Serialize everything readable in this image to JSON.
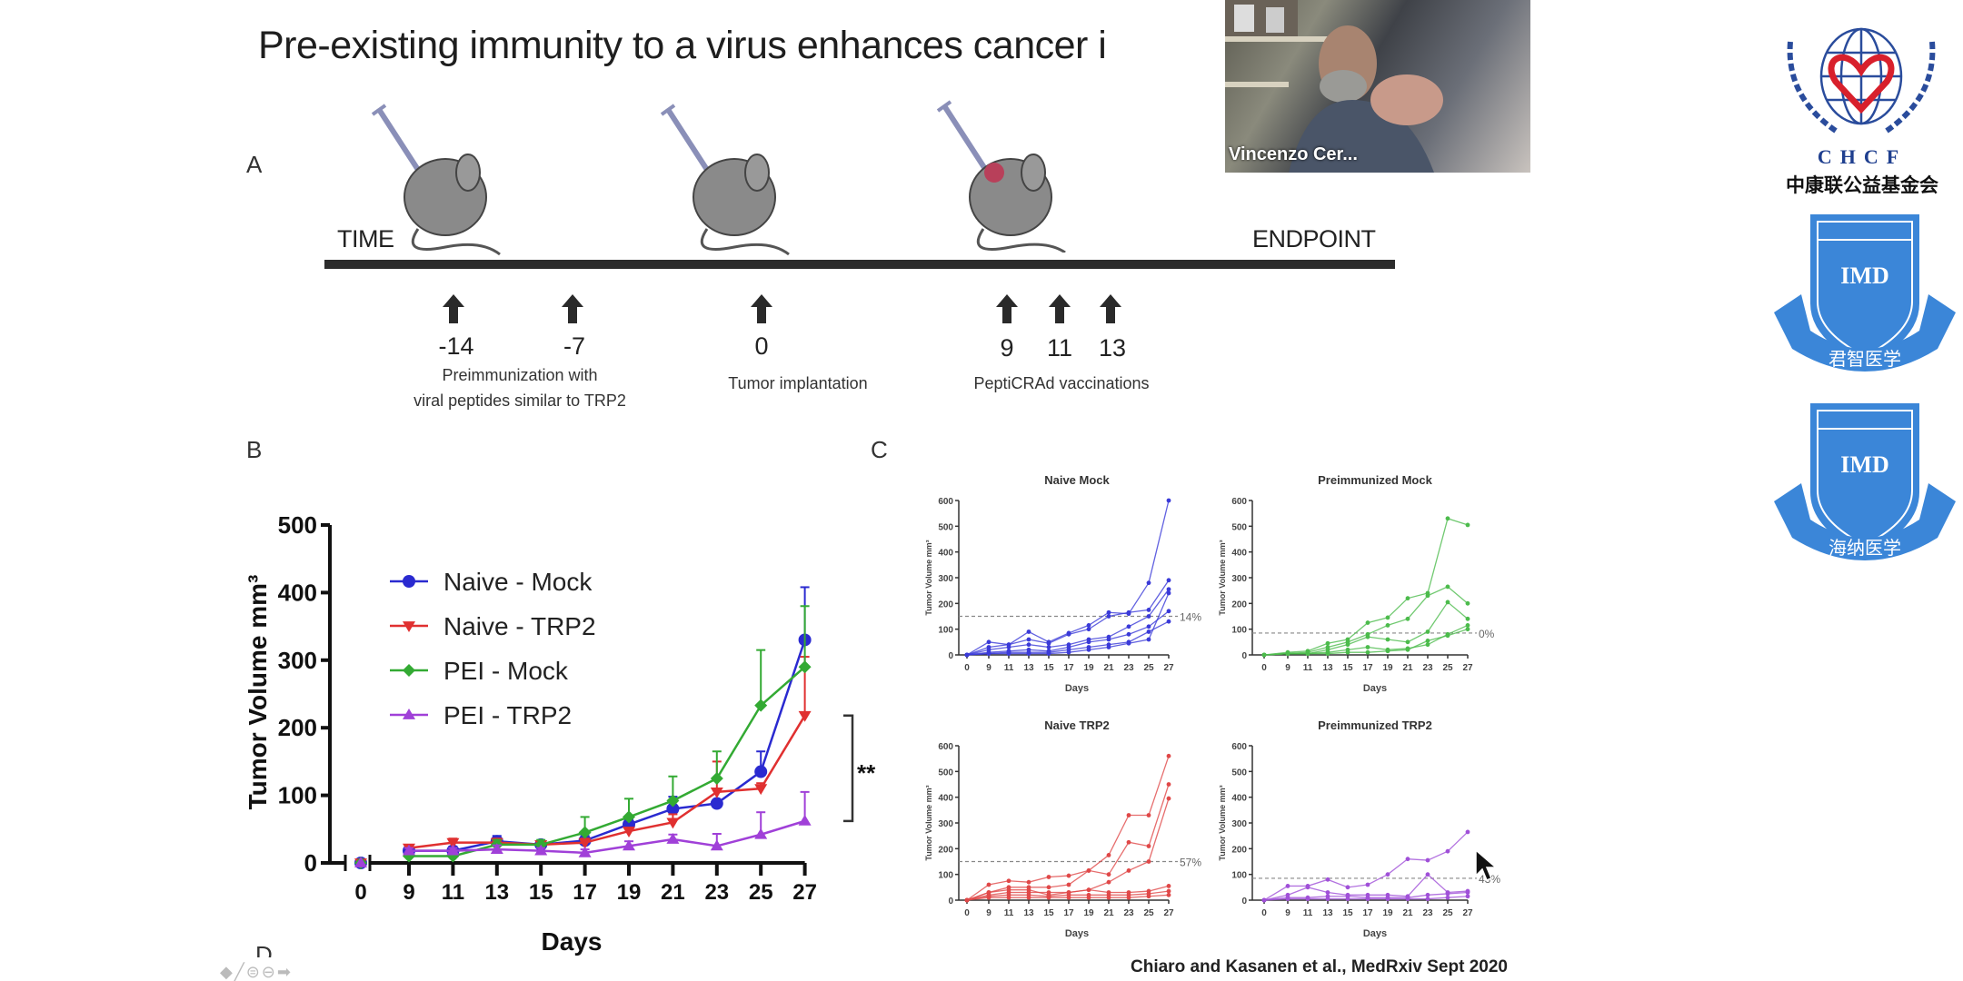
{
  "slide": {
    "title": "Pre-existing immunity to a virus enhances cancer i",
    "panel_labels": {
      "a": "A",
      "b": "B",
      "c": "C",
      "d": "D"
    },
    "citation": "Chiaro and Kasanen et al., MedRxiv Sept 2020"
  },
  "timeline": {
    "start_label": "TIME",
    "end_label": "ENDPOINT",
    "events": [
      {
        "day": "-14"
      },
      {
        "day": "-7"
      },
      {
        "day": "0"
      },
      {
        "day": "9"
      },
      {
        "day": "11"
      },
      {
        "day": "13"
      }
    ],
    "captions": {
      "preimmunization_line1": "Preimmunization with",
      "preimmunization_line2": "viral peptides similar to TRP2",
      "implantation": "Tumor implantation",
      "vaccinations": "PeptiCRAd vaccinations"
    }
  },
  "webcam": {
    "participant_name": "Vincenzo Cer..."
  },
  "logos": {
    "chcf_letters": "CHCF",
    "chcf_chinese": "中康联公益基金会",
    "imd1_text": "IMD",
    "imd1_chinese": "君智医学",
    "imd2_text": "IMD",
    "imd2_chinese": "海纳医学"
  },
  "nav_controls": {
    "icons": [
      "arrow-left-icon",
      "pen-icon",
      "menu-icon",
      "zoom-out-icon",
      "arrow-right-icon"
    ]
  },
  "chart_data": [
    {
      "type": "line",
      "id": "B",
      "xlabel": "Days",
      "ylabel": "Tumor Volume mm³",
      "x": [
        0,
        9,
        11,
        13,
        15,
        17,
        19,
        21,
        23,
        25,
        27
      ],
      "xticks": [
        "0",
        "9",
        "11",
        "13",
        "15",
        "17",
        "19",
        "21",
        "23",
        "25",
        "27"
      ],
      "ylim": [
        0,
        500
      ],
      "yticks": [
        "0",
        "100",
        "200",
        "300",
        "400",
        "500"
      ],
      "legend_position": "top-left",
      "significance": "**",
      "series": [
        {
          "name": "Naive - Mock",
          "color": "#2a2ad0",
          "marker": "circle",
          "values": [
            0,
            18,
            18,
            32,
            27,
            33,
            57,
            80,
            88,
            135,
            330
          ],
          "err_upper": [
            0,
            22,
            24,
            40,
            32,
            40,
            65,
            98,
            92,
            165,
            408
          ]
        },
        {
          "name": "Naive - TRP2",
          "color": "#e03030",
          "marker": "triangle-down",
          "values": [
            0,
            22,
            30,
            30,
            27,
            30,
            47,
            60,
            105,
            110,
            218
          ],
          "err_upper": [
            0,
            25,
            36,
            36,
            32,
            36,
            52,
            72,
            150,
            118,
            305
          ]
        },
        {
          "name": "PEI - Mock",
          "color": "#33aa33",
          "marker": "diamond",
          "values": [
            0,
            10,
            10,
            27,
            27,
            45,
            68,
            92,
            125,
            233,
            290
          ],
          "err_upper": [
            0,
            14,
            14,
            34,
            34,
            68,
            95,
            128,
            165,
            315,
            380
          ]
        },
        {
          "name": "PEI - TRP2",
          "color": "#a040d8",
          "marker": "triangle-up",
          "values": [
            0,
            18,
            18,
            20,
            18,
            15,
            25,
            35,
            25,
            42,
            62
          ],
          "err_upper": [
            0,
            22,
            22,
            26,
            22,
            20,
            32,
            42,
            43,
            75,
            105
          ]
        }
      ]
    },
    {
      "type": "line",
      "id": "C1",
      "title": "Naive Mock",
      "color": "#3a3ad8",
      "xlabel": "Days",
      "ylabel": "Tumor Volume mm³",
      "ylim": [
        0,
        600
      ],
      "x": [
        0,
        9,
        11,
        13,
        15,
        17,
        19,
        21,
        23,
        25,
        27
      ],
      "xticks": [
        "0",
        "9",
        "11",
        "13",
        "15",
        "17",
        "19",
        "21",
        "23",
        "25",
        "27"
      ],
      "yticks": [
        "0",
        "100",
        "200",
        "300",
        "400",
        "500",
        "600"
      ],
      "threshold": 150,
      "threshold_label": "14%",
      "series": [
        [
          0,
          50,
          40,
          90,
          50,
          85,
          115,
          165,
          160,
          280,
          600
        ],
        [
          0,
          30,
          40,
          60,
          45,
          80,
          100,
          150,
          165,
          175,
          290
        ],
        [
          0,
          20,
          30,
          40,
          30,
          40,
          60,
          70,
          110,
          150,
          255
        ],
        [
          0,
          10,
          15,
          20,
          15,
          30,
          50,
          60,
          80,
          110,
          170
        ],
        [
          0,
          5,
          10,
          10,
          10,
          20,
          30,
          40,
          50,
          90,
          130
        ],
        [
          0,
          5,
          5,
          5,
          5,
          10,
          20,
          30,
          45,
          60,
          240
        ]
      ]
    },
    {
      "type": "line",
      "id": "C2",
      "title": "Preimmunized Mock",
      "color": "#4cbb4c",
      "xlabel": "Days",
      "ylabel": "Tumor Volume mm³",
      "ylim": [
        0,
        600
      ],
      "x": [
        0,
        9,
        11,
        13,
        15,
        17,
        19,
        21,
        23,
        25,
        27
      ],
      "xticks": [
        "0",
        "9",
        "11",
        "13",
        "15",
        "17",
        "19",
        "21",
        "23",
        "25",
        "27"
      ],
      "yticks": [
        "0",
        "100",
        "200",
        "300",
        "400",
        "500",
        "600"
      ],
      "threshold": 85,
      "threshold_label": "0%",
      "series": [
        [
          0,
          10,
          15,
          45,
          60,
          125,
          145,
          220,
          240,
          530,
          505
        ],
        [
          0,
          5,
          10,
          30,
          50,
          80,
          115,
          140,
          230,
          265,
          200
        ],
        [
          0,
          5,
          5,
          20,
          40,
          70,
          60,
          50,
          90,
          205,
          140
        ],
        [
          0,
          5,
          5,
          10,
          20,
          30,
          20,
          25,
          40,
          80,
          115
        ],
        [
          0,
          5,
          5,
          5,
          10,
          10,
          15,
          20,
          55,
          75,
          100
        ]
      ]
    },
    {
      "type": "line",
      "id": "C3",
      "title": "Naive TRP2",
      "color": "#e04848",
      "xlabel": "Days",
      "ylabel": "Tumor Volume mm³",
      "ylim": [
        0,
        600
      ],
      "x": [
        0,
        9,
        11,
        13,
        15,
        17,
        19,
        21,
        23,
        25,
        27
      ],
      "xticks": [
        "0",
        "9",
        "11",
        "13",
        "15",
        "17",
        "19",
        "21",
        "23",
        "25",
        "27"
      ],
      "yticks": [
        "0",
        "100",
        "200",
        "300",
        "400",
        "500",
        "600"
      ],
      "threshold": 150,
      "threshold_label": "57%",
      "series": [
        [
          0,
          60,
          75,
          70,
          90,
          95,
          115,
          175,
          330,
          330,
          560
        ],
        [
          0,
          30,
          50,
          50,
          50,
          60,
          115,
          100,
          225,
          210,
          450
        ],
        [
          0,
          20,
          30,
          30,
          30,
          30,
          40,
          70,
          115,
          150,
          395
        ],
        [
          0,
          30,
          40,
          40,
          20,
          30,
          40,
          30,
          30,
          35,
          55
        ],
        [
          0,
          15,
          20,
          20,
          15,
          20,
          20,
          20,
          20,
          25,
          35
        ],
        [
          0,
          10,
          10,
          10,
          10,
          10,
          10,
          10,
          10,
          15,
          20
        ]
      ]
    },
    {
      "type": "line",
      "id": "C4",
      "title": "Preimmunized TRP2",
      "color": "#a050d8",
      "xlabel": "Days",
      "ylabel": "Tumor Volume mm³",
      "ylim": [
        0,
        600
      ],
      "x": [
        0,
        9,
        11,
        13,
        15,
        17,
        19,
        21,
        23,
        25,
        27
      ],
      "xticks": [
        "0",
        "9",
        "11",
        "13",
        "15",
        "17",
        "19",
        "21",
        "23",
        "25",
        "27"
      ],
      "yticks": [
        "0",
        "100",
        "200",
        "300",
        "400",
        "500",
        "600"
      ],
      "threshold": 85,
      "threshold_label": "43%",
      "series": [
        [
          0,
          55,
          55,
          80,
          50,
          60,
          100,
          160,
          155,
          190,
          265
        ],
        [
          0,
          20,
          50,
          30,
          20,
          20,
          20,
          15,
          100,
          30,
          35
        ],
        [
          0,
          10,
          10,
          15,
          15,
          10,
          10,
          10,
          20,
          25,
          30
        ],
        [
          0,
          5,
          5,
          5,
          5,
          5,
          5,
          5,
          5,
          10,
          15
        ]
      ]
    }
  ]
}
